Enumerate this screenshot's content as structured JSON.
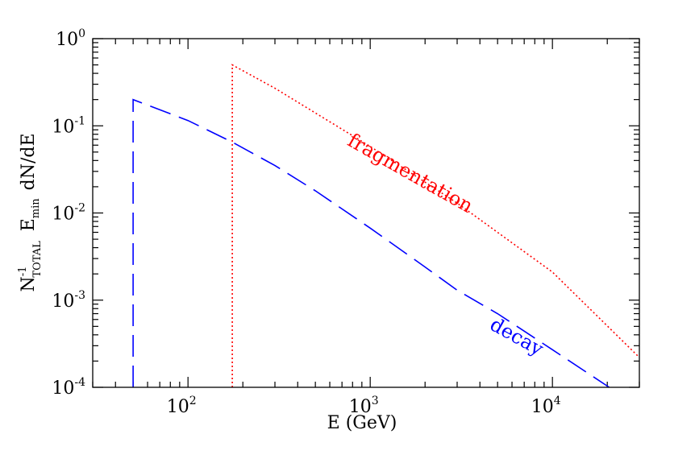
{
  "chart_data": {
    "type": "line",
    "xlabel": "E (GeV)",
    "ylabel": {
      "prefix": "N",
      "prefix_sub": "TOTAL",
      "prefix_sup": "-1",
      "mid": "E",
      "mid_sub": "min",
      "suffix": "dN/dE"
    },
    "x_scale": "log",
    "y_scale": "log",
    "xlim": [
      30,
      30000
    ],
    "ylim": [
      0.0001,
      1
    ],
    "x_ticks": [
      {
        "value": 100,
        "base": "10",
        "exp": "2"
      },
      {
        "value": 1000,
        "base": "10",
        "exp": "3"
      },
      {
        "value": 10000,
        "base": "10",
        "exp": "4"
      }
    ],
    "y_ticks": [
      {
        "value": 1,
        "base": "10",
        "exp": "0"
      },
      {
        "value": 0.1,
        "base": "10",
        "exp": "-1"
      },
      {
        "value": 0.01,
        "base": "10",
        "exp": "-2"
      },
      {
        "value": 0.001,
        "base": "10",
        "exp": "-3"
      },
      {
        "value": 0.0001,
        "base": "10",
        "exp": "-4"
      }
    ],
    "series": [
      {
        "label": "fragmentation",
        "color": "#ff0000",
        "style": "dotted",
        "x": [
          175,
          175,
          300,
          1000,
          3000,
          10000,
          30000
        ],
        "y": [
          0.0001,
          0.5,
          0.27,
          0.058,
          0.013,
          0.0021,
          0.00022
        ]
      },
      {
        "label": "decay",
        "color": "#0000ff",
        "style": "dashed",
        "x": [
          50,
          50,
          100,
          175,
          300,
          500,
          1000,
          2000,
          3000,
          5000,
          10000,
          20500
        ],
        "y": [
          0.0001,
          0.2,
          0.115,
          0.065,
          0.035,
          0.018,
          0.0067,
          0.0024,
          0.0013,
          0.0007,
          0.00027,
          0.0001
        ]
      }
    ],
    "annotations": [
      {
        "text": "fragmentation",
        "color": "#ff0000"
      },
      {
        "text": "decay",
        "color": "#0000ff"
      }
    ]
  }
}
